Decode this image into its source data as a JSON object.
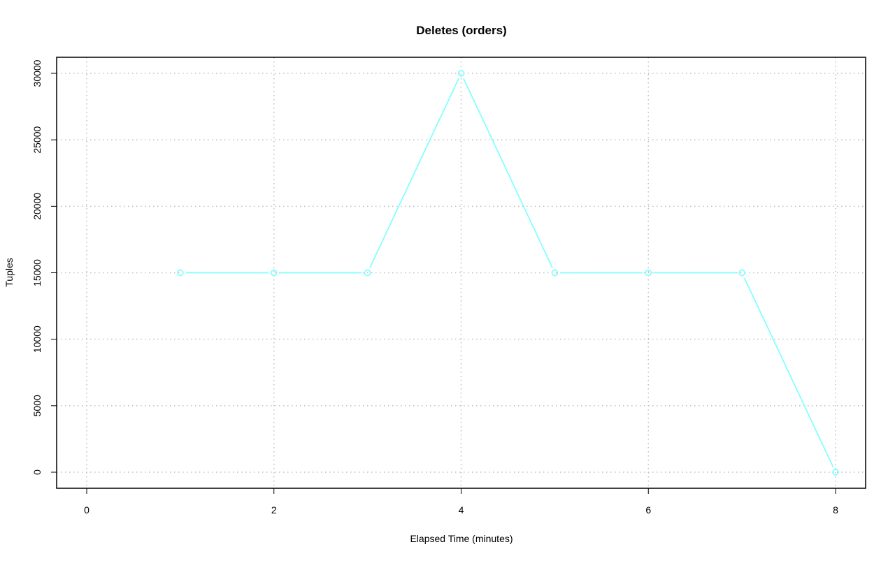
{
  "chart_data": {
    "type": "line",
    "title": "Deletes (orders)",
    "xlabel": "Elapsed Time (minutes)",
    "ylabel": "Tuples",
    "x": [
      1,
      2,
      3,
      4,
      5,
      6,
      7,
      8
    ],
    "series": [
      {
        "values": [
          15000,
          15000,
          15000,
          30000,
          15000,
          15000,
          15000,
          0
        ],
        "color": "#80ffff"
      }
    ],
    "xticks": [
      "0",
      "2",
      "4",
      "6",
      "8"
    ],
    "yticks": [
      "0",
      "5000",
      "10000",
      "15000",
      "20000",
      "25000",
      "30000"
    ],
    "xlim": [
      0,
      8
    ],
    "ylim": [
      0,
      30000
    ],
    "grid": true,
    "markers": "open-circle"
  }
}
